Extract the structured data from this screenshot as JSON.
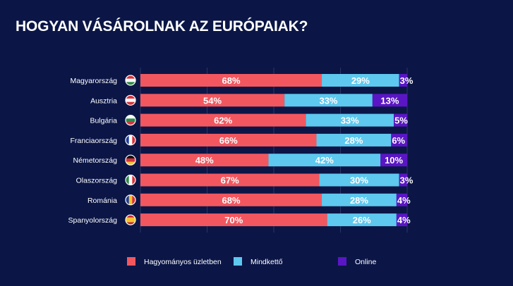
{
  "chart_data": {
    "type": "bar",
    "orientation": "horizontal",
    "stacked": true,
    "title": "HOGYAN VÁSÁROLNAK AZ EURÓPAIAK?",
    "categories": [
      "Magyarország",
      "Ausztria",
      "Bulgária",
      "Franciaország",
      "Németország",
      "Olaszország",
      "Románia",
      "Spanyolország"
    ],
    "series": [
      {
        "name": "Hagyományos üzletben",
        "color": "#f2575f",
        "values": [
          68,
          54,
          62,
          66,
          48,
          67,
          68,
          70
        ],
        "labels": [
          "68%",
          "54%",
          "62%",
          "66%",
          "48%",
          "67%",
          "68%",
          "70%"
        ]
      },
      {
        "name": "Mindkettő",
        "color": "#5ec8ee",
        "values": [
          29,
          33,
          33,
          28,
          42,
          30,
          28,
          26
        ],
        "labels": [
          "29%",
          "33%",
          "33%",
          "28%",
          "42%",
          "30%",
          "28%",
          "26%"
        ]
      },
      {
        "name": "Online",
        "color": "#5a16c4",
        "values": [
          3,
          13,
          5,
          6,
          10,
          3,
          4,
          4
        ],
        "labels": [
          "3%",
          "13%",
          "5%",
          "6%",
          "10%",
          "3%",
          "4%",
          "4%"
        ]
      }
    ],
    "xlim": [
      0,
      100
    ],
    "grid": true,
    "legend": "bottom",
    "flags": [
      "hungary-flag-icon",
      "austria-flag-icon",
      "bulgaria-flag-icon",
      "france-flag-icon",
      "germany-flag-icon",
      "italy-flag-icon",
      "romania-flag-icon",
      "spain-flag-icon"
    ]
  }
}
